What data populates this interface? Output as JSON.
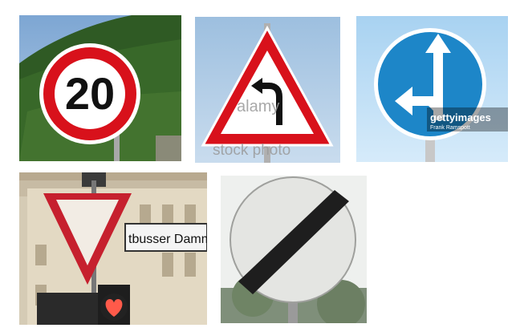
{
  "images": [
    {
      "name": "speed-limit-sign",
      "sign_text": "20",
      "colors": {
        "border": "#d8111b",
        "face": "#ffffff",
        "text": "#111111"
      }
    },
    {
      "name": "curve-warning-sign",
      "watermark": {
        "brand": "alamy",
        "line2": "stock photo"
      },
      "colors": {
        "border": "#d8111b",
        "face": "#ffffff"
      }
    },
    {
      "name": "mandatory-direction-sign",
      "watermark": {
        "brand": "gettyimages",
        "credit": "Frank Ramspott"
      },
      "colors": {
        "face": "#1d86c8",
        "arrow": "#ffffff"
      }
    },
    {
      "name": "yield-sign-street",
      "street_sign_text": "tbusser Damm",
      "colors": {
        "border": "#c6202e",
        "face": "#f2ece4"
      }
    },
    {
      "name": "end-of-restrictions-sign",
      "colors": {
        "face": "#e4e5e2",
        "stripe": "#1e1e1e"
      }
    }
  ]
}
